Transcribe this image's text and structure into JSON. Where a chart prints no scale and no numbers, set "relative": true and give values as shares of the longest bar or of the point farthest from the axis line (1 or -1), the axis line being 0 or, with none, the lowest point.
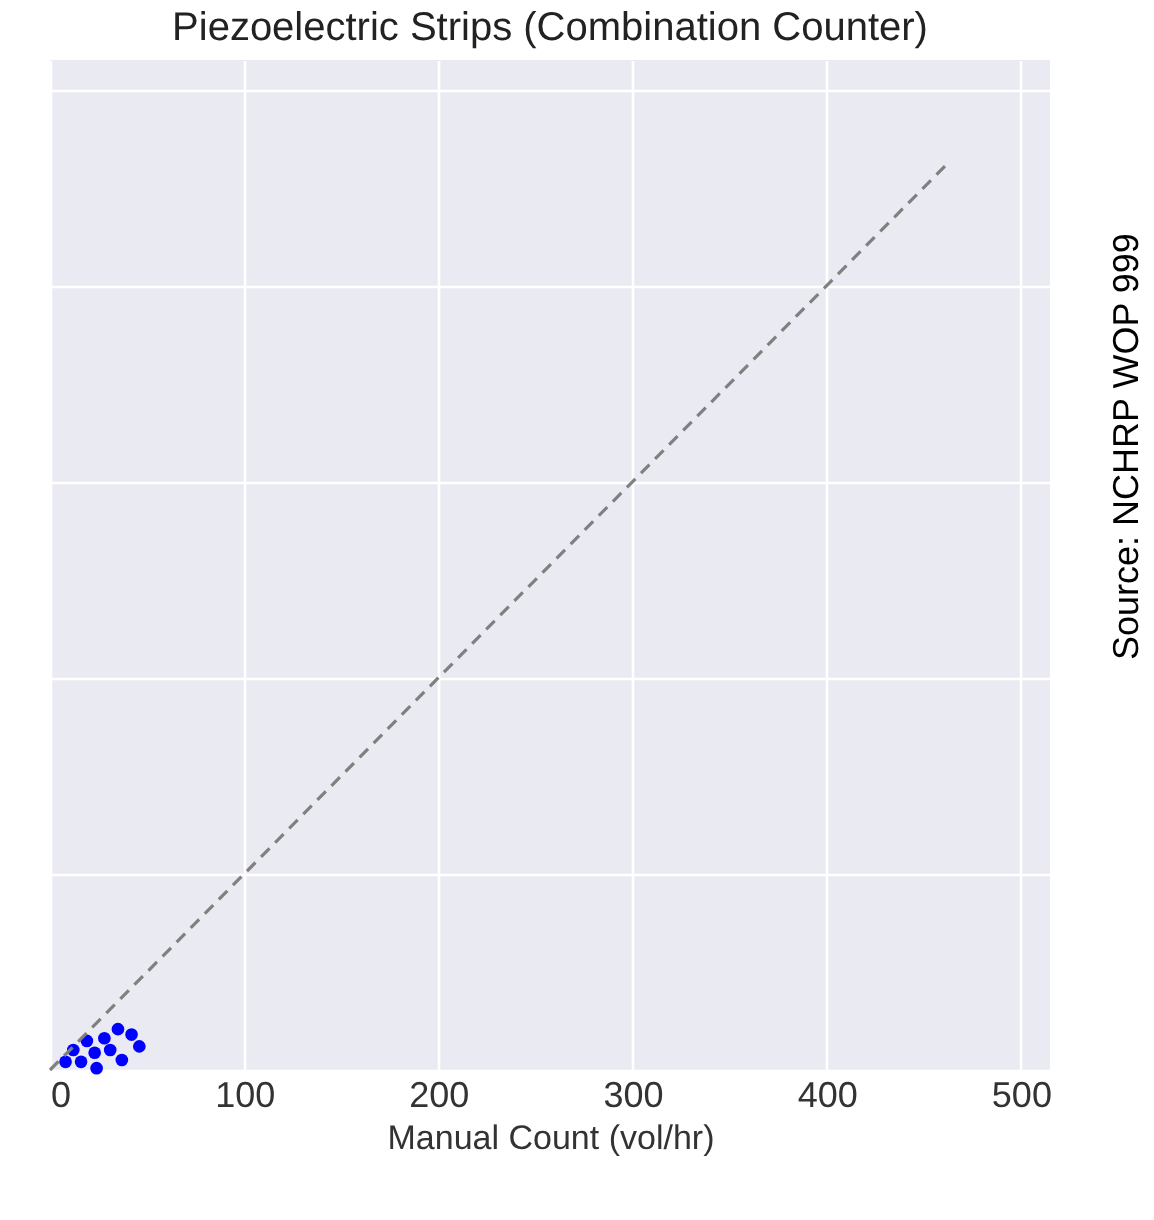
{
  "chart_data": {
    "type": "scatter",
    "title": "Piezoelectric Strips (Combination Counter)",
    "xlabel": "Manual Count (vol/hr)",
    "annotations": [
      "Source: NCHRP WOP 999"
    ],
    "xlim": [
      0,
      515
    ],
    "xticks": [
      0,
      100,
      200,
      300,
      400,
      500
    ],
    "relative": true,
    "tick_labels": "x",
    "grid": true,
    "series": [
      {
        "color": "#0000ff",
        "marker": "circle",
        "x": [
          8,
          12,
          16,
          19,
          23,
          24,
          28,
          31,
          35,
          37,
          42,
          46
        ],
        "values": [
          0.009,
          0.022,
          0.009,
          0.032,
          0.019,
          0.002,
          0.035,
          0.022,
          0.045,
          0.011,
          0.039,
          0.026
        ]
      },
      {
        "type": "line",
        "color": "#808080",
        "line_style": "dashed",
        "x": [
          0,
          463
        ],
        "values": [
          0,
          1
        ]
      }
    ]
  }
}
